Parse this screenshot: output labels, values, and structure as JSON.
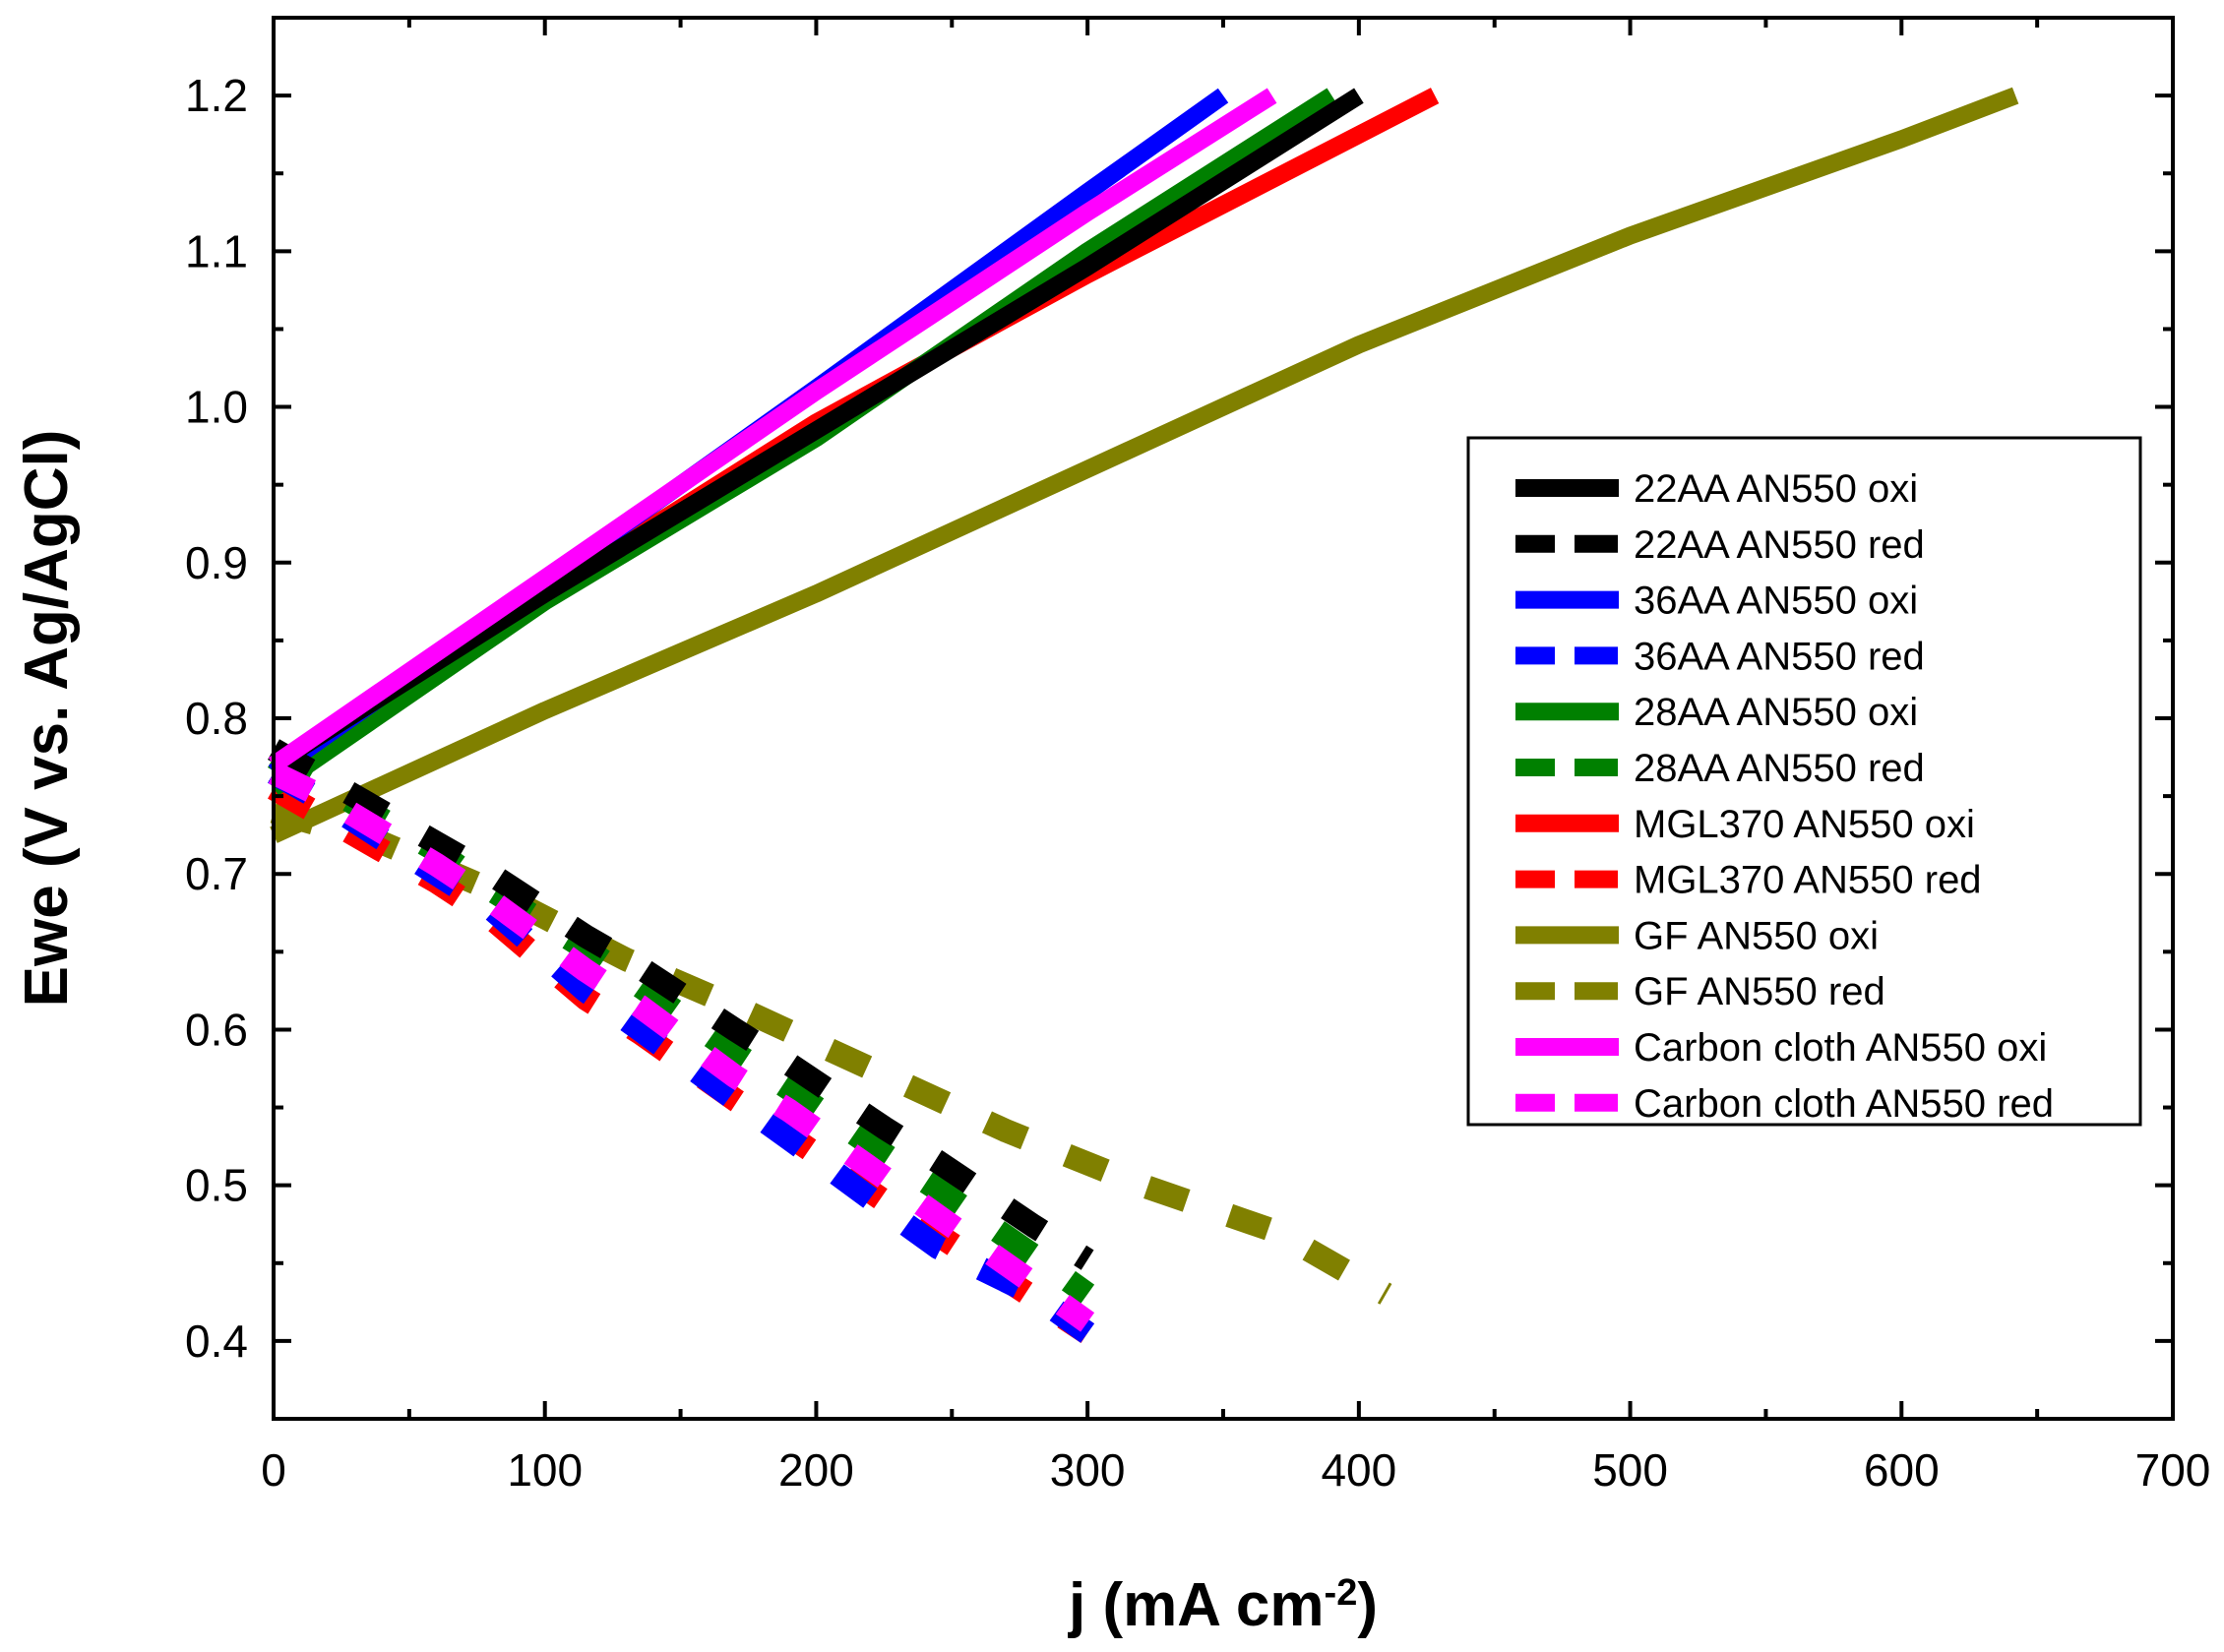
{
  "chart_data": {
    "type": "line",
    "xlabel": "j (mA cm",
    "xlabel_sup": "-2",
    "xlabel_end": ")",
    "ylabel": "Ewe (V vs. Ag/AgCl)",
    "xlim": [
      0,
      700
    ],
    "ylim": [
      0.35,
      1.25
    ],
    "xticks": [
      0,
      100,
      200,
      300,
      400,
      500,
      600,
      700
    ],
    "xtick_labels": [
      "0",
      "100",
      "200",
      "300",
      "400",
      "500",
      "600",
      "700"
    ],
    "yticks": [
      0.4,
      0.5,
      0.6,
      0.7,
      0.8,
      0.9,
      1.0,
      1.1,
      1.2
    ],
    "ytick_labels": [
      "0.4",
      "0.5",
      "0.6",
      "0.7",
      "0.8",
      "0.9",
      "1.0",
      "1.1",
      "1.2"
    ],
    "grid": false,
    "legend_position": "right",
    "series": [
      {
        "name": "22AA AN550 oxi",
        "style": "solid",
        "color": "#000000",
        "x": [
          0,
          100,
          200,
          300,
          400
        ],
        "y": [
          0.77,
          0.88,
          0.985,
          1.09,
          1.2
        ]
      },
      {
        "name": "22AA AN550 red",
        "style": "dashed",
        "color": "#000000",
        "x": [
          0,
          20,
          60,
          80,
          115,
          135,
          170,
          190,
          225,
          245,
          280,
          300
        ],
        "y": [
          0.78,
          0.76,
          0.72,
          0.7,
          0.66,
          0.64,
          0.6,
          0.578,
          0.537,
          0.515,
          0.474,
          0.452
        ]
      },
      {
        "name": "36AA AN550 oxi",
        "style": "solid",
        "color": "#0000ff",
        "x": [
          0,
          100,
          200,
          300,
          350
        ],
        "y": [
          0.765,
          0.888,
          1.012,
          1.138,
          1.2
        ]
      },
      {
        "name": "36AA AN550 red",
        "style": "dashed",
        "color": "#0000ff",
        "x": [
          0,
          20,
          60,
          80,
          115,
          135,
          170,
          190,
          225,
          245,
          280,
          300
        ],
        "y": [
          0.765,
          0.745,
          0.7,
          0.678,
          0.625,
          0.6,
          0.555,
          0.53,
          0.485,
          0.46,
          0.43,
          0.405
        ]
      },
      {
        "name": "28AA AN550 oxi",
        "style": "solid",
        "color": "#008000",
        "x": [
          0,
          100,
          200,
          300,
          390
        ],
        "y": [
          0.755,
          0.875,
          0.98,
          1.1,
          1.2
        ]
      },
      {
        "name": "28AA AN550 red",
        "style": "dashed",
        "color": "#008000",
        "x": [
          0,
          20,
          60,
          80,
          115,
          135,
          170,
          190,
          225,
          245,
          280,
          300
        ],
        "y": [
          0.775,
          0.755,
          0.715,
          0.69,
          0.652,
          0.628,
          0.585,
          0.562,
          0.52,
          0.497,
          0.455,
          0.43
        ]
      },
      {
        "name": "MGL370 AN550 oxi",
        "style": "solid",
        "color": "#ff0000",
        "x": [
          0,
          100,
          200,
          300,
          428
        ],
        "y": [
          0.755,
          0.88,
          0.99,
          1.085,
          1.2
        ]
      },
      {
        "name": "MGL370 AN550 red",
        "style": "dashed",
        "color": "#ff0000",
        "x": [
          0,
          20,
          60,
          80,
          115,
          135,
          170,
          190,
          225,
          245,
          280,
          300
        ],
        "y": [
          0.755,
          0.735,
          0.695,
          0.672,
          0.62,
          0.598,
          0.555,
          0.532,
          0.49,
          0.468,
          0.428,
          0.405
        ]
      },
      {
        "name": "GF AN550 oxi",
        "style": "solid",
        "color": "#808000",
        "x": [
          0,
          100,
          200,
          300,
          400,
          500,
          600,
          642
        ],
        "y": [
          0.725,
          0.805,
          0.88,
          0.96,
          1.04,
          1.11,
          1.172,
          1.2
        ]
      },
      {
        "name": "GF AN550 red",
        "style": "dashed",
        "color": "#808000",
        "x": [
          0,
          40,
          80,
          130,
          170,
          220,
          270,
          320,
          370,
          410
        ],
        "y": [
          0.74,
          0.72,
          0.69,
          0.645,
          0.615,
          0.575,
          0.535,
          0.5,
          0.47,
          0.43
        ]
      },
      {
        "name": "Carbon cloth AN550 oxi",
        "style": "solid",
        "color": "#ff00ff",
        "x": [
          0,
          100,
          200,
          300,
          368
        ],
        "y": [
          0.77,
          0.89,
          1.01,
          1.125,
          1.2
        ]
      },
      {
        "name": "Carbon cloth AN550 red",
        "style": "dashed",
        "color": "#ff00ff",
        "x": [
          0,
          20,
          60,
          80,
          115,
          135,
          170,
          190,
          225,
          245,
          280,
          300
        ],
        "y": [
          0.765,
          0.748,
          0.706,
          0.683,
          0.638,
          0.615,
          0.57,
          0.548,
          0.505,
          0.48,
          0.437,
          0.412
        ]
      }
    ]
  }
}
